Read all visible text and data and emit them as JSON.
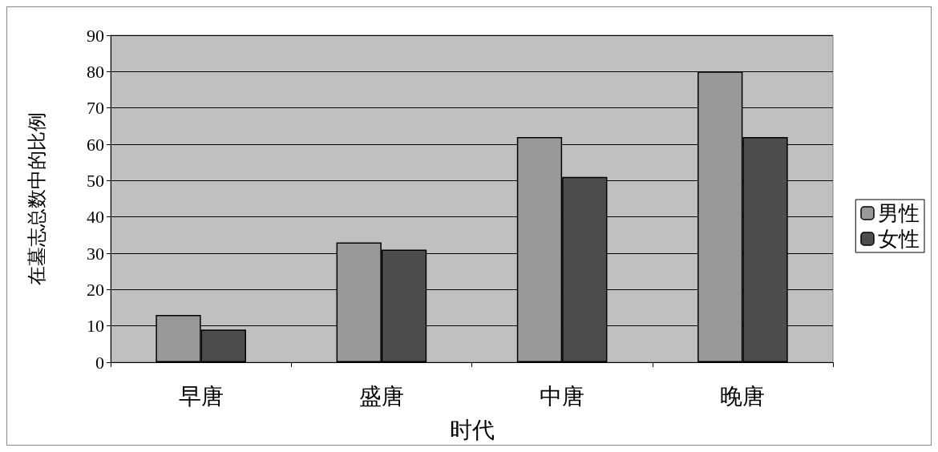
{
  "chart_data": {
    "type": "bar",
    "xlabel": "时代",
    "ylabel": "在墓志总数中的比例",
    "categories": [
      "早唐",
      "盛唐",
      "中唐",
      "晚唐"
    ],
    "series": [
      {
        "name": "男性",
        "color": "#999999",
        "values": [
          13,
          33,
          62,
          80
        ]
      },
      {
        "name": "女性",
        "color": "#4d4d4d",
        "values": [
          9,
          31,
          51,
          62
        ]
      }
    ],
    "ylim": [
      0,
      90
    ],
    "yticks": [
      0,
      10,
      20,
      30,
      40,
      50,
      60,
      70,
      80,
      90
    ],
    "grid": "y",
    "legend": "right"
  }
}
